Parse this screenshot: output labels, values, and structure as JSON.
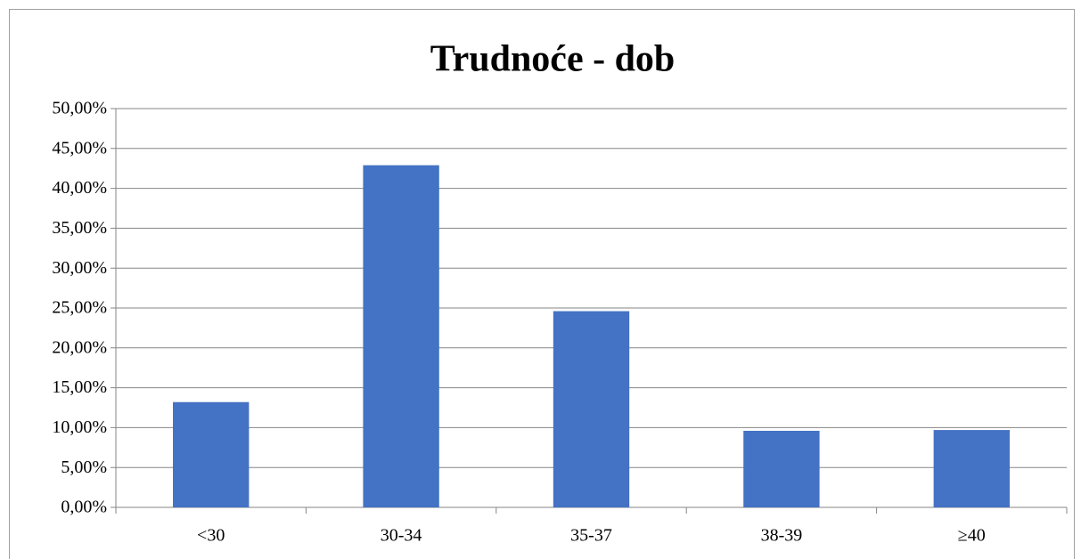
{
  "chart_data": {
    "type": "bar",
    "title": "Trudnoće - dob",
    "categories": [
      "<30",
      "30-34",
      "35-37",
      "38-39",
      "≥40"
    ],
    "values": [
      13.2,
      42.9,
      24.6,
      9.6,
      9.7
    ],
    "color": "#4472c4",
    "ylim": [
      0,
      50
    ],
    "yticks": [
      {
        "value": 0,
        "label": "0,00%"
      },
      {
        "value": 5,
        "label": "5,00%"
      },
      {
        "value": 10,
        "label": "10,00%"
      },
      {
        "value": 15,
        "label": "15,00%"
      },
      {
        "value": 20,
        "label": "20,00%"
      },
      {
        "value": 25,
        "label": "25,00%"
      },
      {
        "value": 30,
        "label": "30,00%"
      },
      {
        "value": 35,
        "label": "35,00%"
      },
      {
        "value": 40,
        "label": "40,00%"
      },
      {
        "value": 45,
        "label": "45,00%"
      },
      {
        "value": 50,
        "label": "50,00%"
      }
    ],
    "grid": true
  }
}
